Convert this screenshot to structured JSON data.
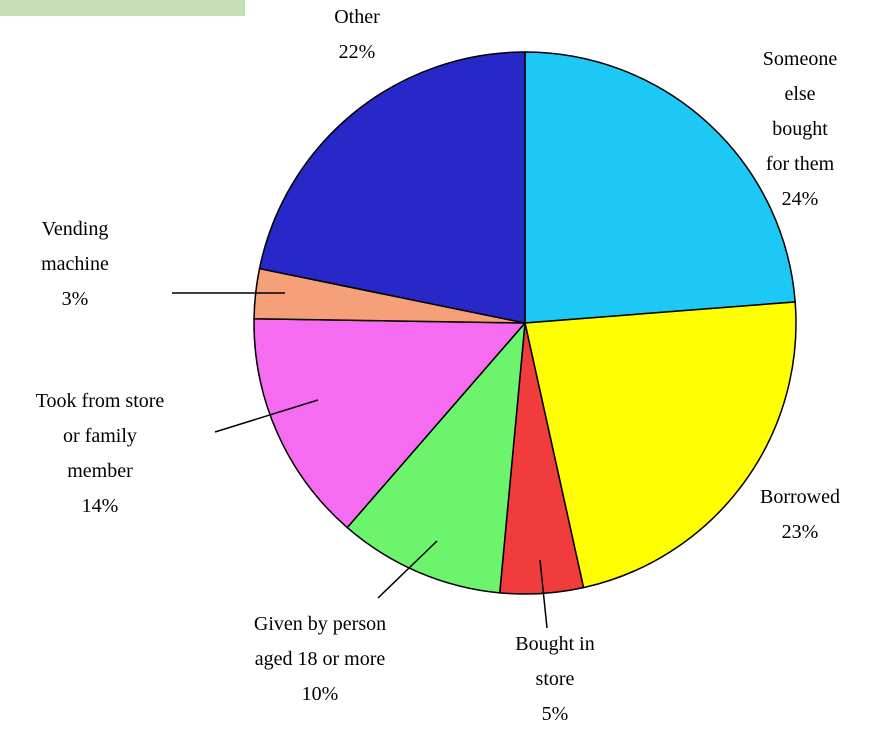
{
  "chart_data": {
    "type": "pie",
    "categories": [
      "Someone else\nbought for them",
      "Borrowed",
      "Bought in\nstore",
      "Given by person\naged 18 or more",
      "Took from store\nor  family\nmember",
      "Vending\nmachine",
      "Other"
    ],
    "values": [
      24,
      23,
      5,
      10,
      14,
      3,
      22
    ],
    "value_labels": [
      "24%",
      "23%",
      "5%",
      "10%",
      "14%",
      "3%",
      "22%"
    ],
    "colors": [
      "#1ec8f5",
      "#ffff00",
      "#f03c3c",
      "#6cf56c",
      "#f56cf0",
      "#f5a078",
      "#2828c8"
    ]
  }
}
